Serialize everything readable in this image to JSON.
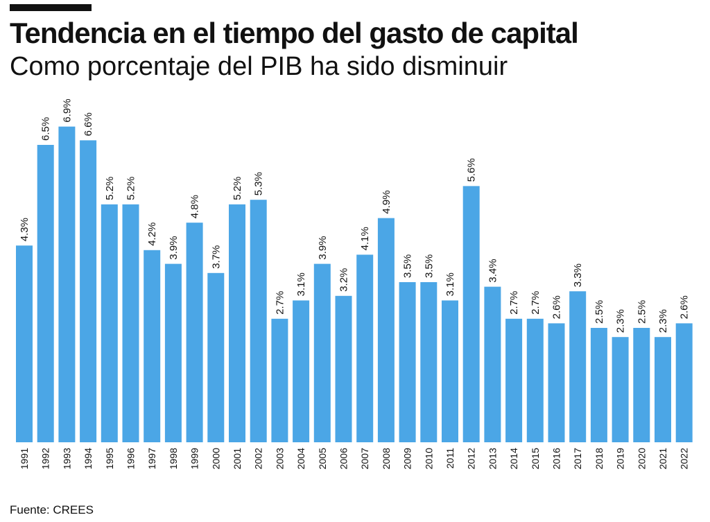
{
  "header": {
    "title": "Tendencia en el tiempo del gasto de capital",
    "subtitle": "Como porcentaje del PIB ha sido disminuir"
  },
  "footer": {
    "source": "Fuente: CREES"
  },
  "colors": {
    "bar": "#4ba6e6",
    "text": "#111111",
    "rule": "#111111"
  },
  "chart_data": {
    "type": "bar",
    "title": "Tendencia en el tiempo del gasto de capital",
    "subtitle": "Como porcentaje del PIB ha sido disminuir",
    "xlabel": "",
    "ylabel": "",
    "ylim": [
      0,
      7
    ],
    "grid": false,
    "categories": [
      "1991",
      "1992",
      "1993",
      "1994",
      "1995",
      "1996",
      "1997",
      "1998",
      "1999",
      "2000",
      "2001",
      "2002",
      "2003",
      "2004",
      "2005",
      "2006",
      "2007",
      "2008",
      "2009",
      "2010",
      "2011",
      "2012",
      "2013",
      "2014",
      "2015",
      "2016",
      "2017",
      "2018",
      "2019",
      "2020",
      "2021",
      "2022"
    ],
    "values": [
      4.3,
      6.5,
      6.9,
      6.6,
      5.2,
      5.2,
      4.2,
      3.9,
      4.8,
      3.7,
      5.2,
      5.3,
      2.7,
      3.1,
      3.9,
      3.2,
      4.1,
      4.9,
      3.5,
      3.5,
      3.1,
      5.6,
      3.4,
      2.7,
      2.7,
      2.6,
      3.3,
      2.5,
      2.3,
      2.5,
      2.3,
      2.6
    ],
    "labels": [
      "4.3%",
      "6.5%",
      "6.9%",
      "6.6%",
      "5.2%",
      "5.2%",
      "4.2%",
      "3.9%",
      "4.8%",
      "3.7%",
      "5.2%",
      "5.3%",
      "2.7%",
      "3.1%",
      "3.9%",
      "3.2%",
      "4.1%",
      "4.9%",
      "3.5%",
      "3.5%",
      "3.1%",
      "5.6%",
      "3.4%",
      "2.7%",
      "2.7%",
      "2.6%",
      "3.3%",
      "2.5%",
      "2.3%",
      "2.5%",
      "2.3%",
      "2.6%"
    ]
  }
}
